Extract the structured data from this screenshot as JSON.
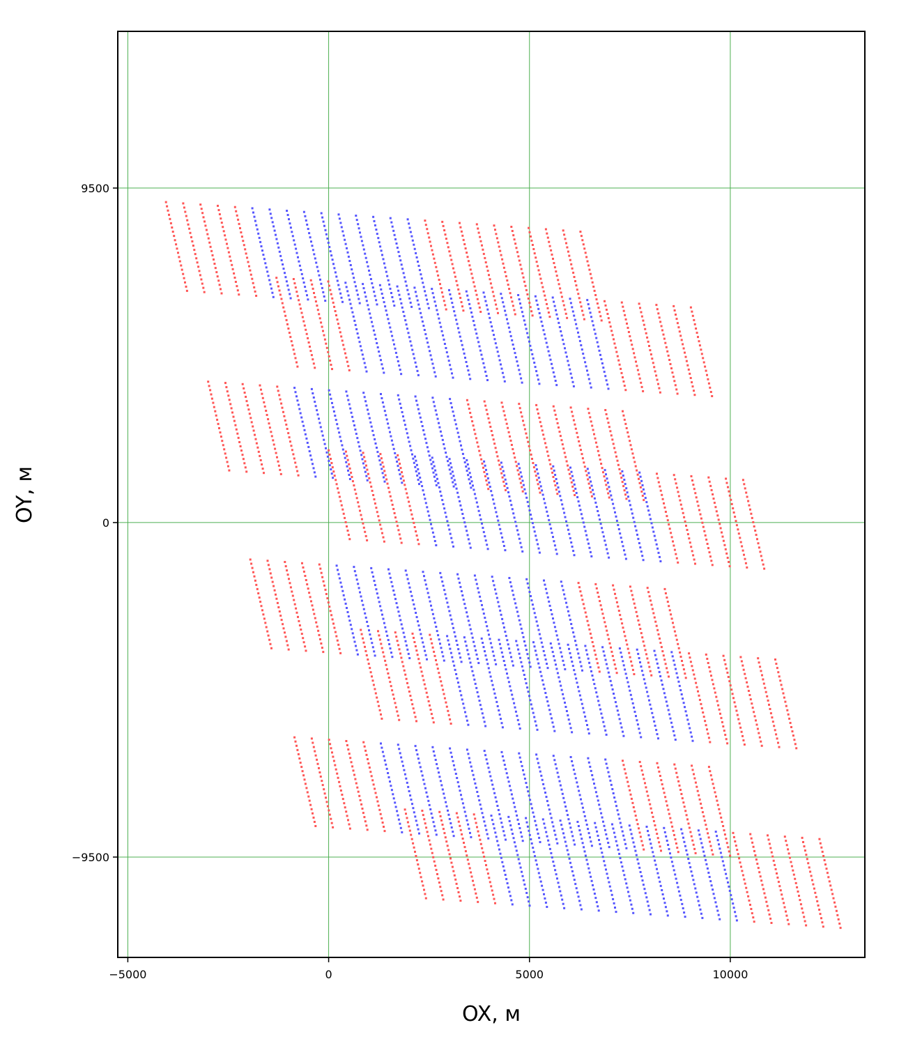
{
  "chart_data": {
    "type": "scatter",
    "xlabel": "OX, м",
    "ylabel": "OY, м",
    "xlim": [
      -5250,
      13350
    ],
    "ylim": [
      -12350,
      13950
    ],
    "xticks": [
      -5000,
      0,
      5000,
      10000
    ],
    "xtick_labels": [
      "−5000",
      "0",
      "5000",
      "10000"
    ],
    "yticks": [
      9500,
      0,
      -9500
    ],
    "ytick_labels": [
      "9500",
      "0",
      "−9500"
    ],
    "grid": true,
    "grid_lines_x": [
      -5000,
      0,
      5000,
      10000
    ],
    "grid_lines_y": [
      9500,
      0,
      -9500
    ],
    "legend": "none",
    "colors": {
      "receivers": "#ff5555",
      "sources": "#5555ff",
      "grid": "#4caf50",
      "frame": "#000000"
    },
    "line_spacing": 430,
    "point_spacing": 120,
    "line_drift_y": -35,
    "point_drift_x": 25,
    "patches": [
      {
        "start": [
          -4050,
          9100
        ],
        "lines": 25,
        "points_per_line": 22,
        "blue_lines": [
          5,
          6,
          7,
          8,
          9,
          10,
          11,
          12,
          13,
          14
        ]
      },
      {
        "start": [
          -1300,
          6950
        ],
        "lines": 25,
        "points_per_line": 22,
        "blue_lines": [
          4,
          5,
          6,
          7,
          8,
          9,
          10,
          11,
          12,
          13,
          14,
          15,
          16,
          17,
          18
        ]
      },
      {
        "start": [
          -3000,
          4000
        ],
        "lines": 25,
        "points_per_line": 22,
        "blue_lines": [
          5,
          6,
          7,
          8,
          9,
          10,
          11,
          12,
          13,
          14
        ]
      },
      {
        "start": [
          0,
          2050
        ],
        "lines": 25,
        "points_per_line": 22,
        "blue_lines": [
          5,
          6,
          7,
          8,
          9,
          10,
          11,
          12,
          13,
          14,
          15,
          16,
          17,
          18
        ]
      },
      {
        "start": [
          -1950,
          -1050
        ],
        "lines": 25,
        "points_per_line": 22,
        "blue_lines": [
          5,
          6,
          7,
          8,
          9,
          10,
          11,
          12,
          13,
          14,
          15,
          16,
          17,
          18
        ]
      },
      {
        "start": [
          800,
          -3050
        ],
        "lines": 25,
        "points_per_line": 22,
        "blue_lines": [
          5,
          6,
          7,
          8,
          9,
          10,
          11,
          12,
          13,
          14,
          15,
          16,
          17,
          18
        ]
      },
      {
        "start": [
          -850,
          -6100
        ],
        "lines": 25,
        "points_per_line": 22,
        "blue_lines": [
          5,
          6,
          7,
          8,
          9,
          10,
          11,
          12,
          13,
          14,
          15,
          16,
          17,
          18
        ]
      },
      {
        "start": [
          1900,
          -8150
        ],
        "lines": 25,
        "points_per_line": 22,
        "blue_lines": [
          5,
          6,
          7,
          8,
          9,
          10,
          11,
          12,
          13,
          14,
          15,
          16,
          17,
          18
        ]
      }
    ]
  }
}
